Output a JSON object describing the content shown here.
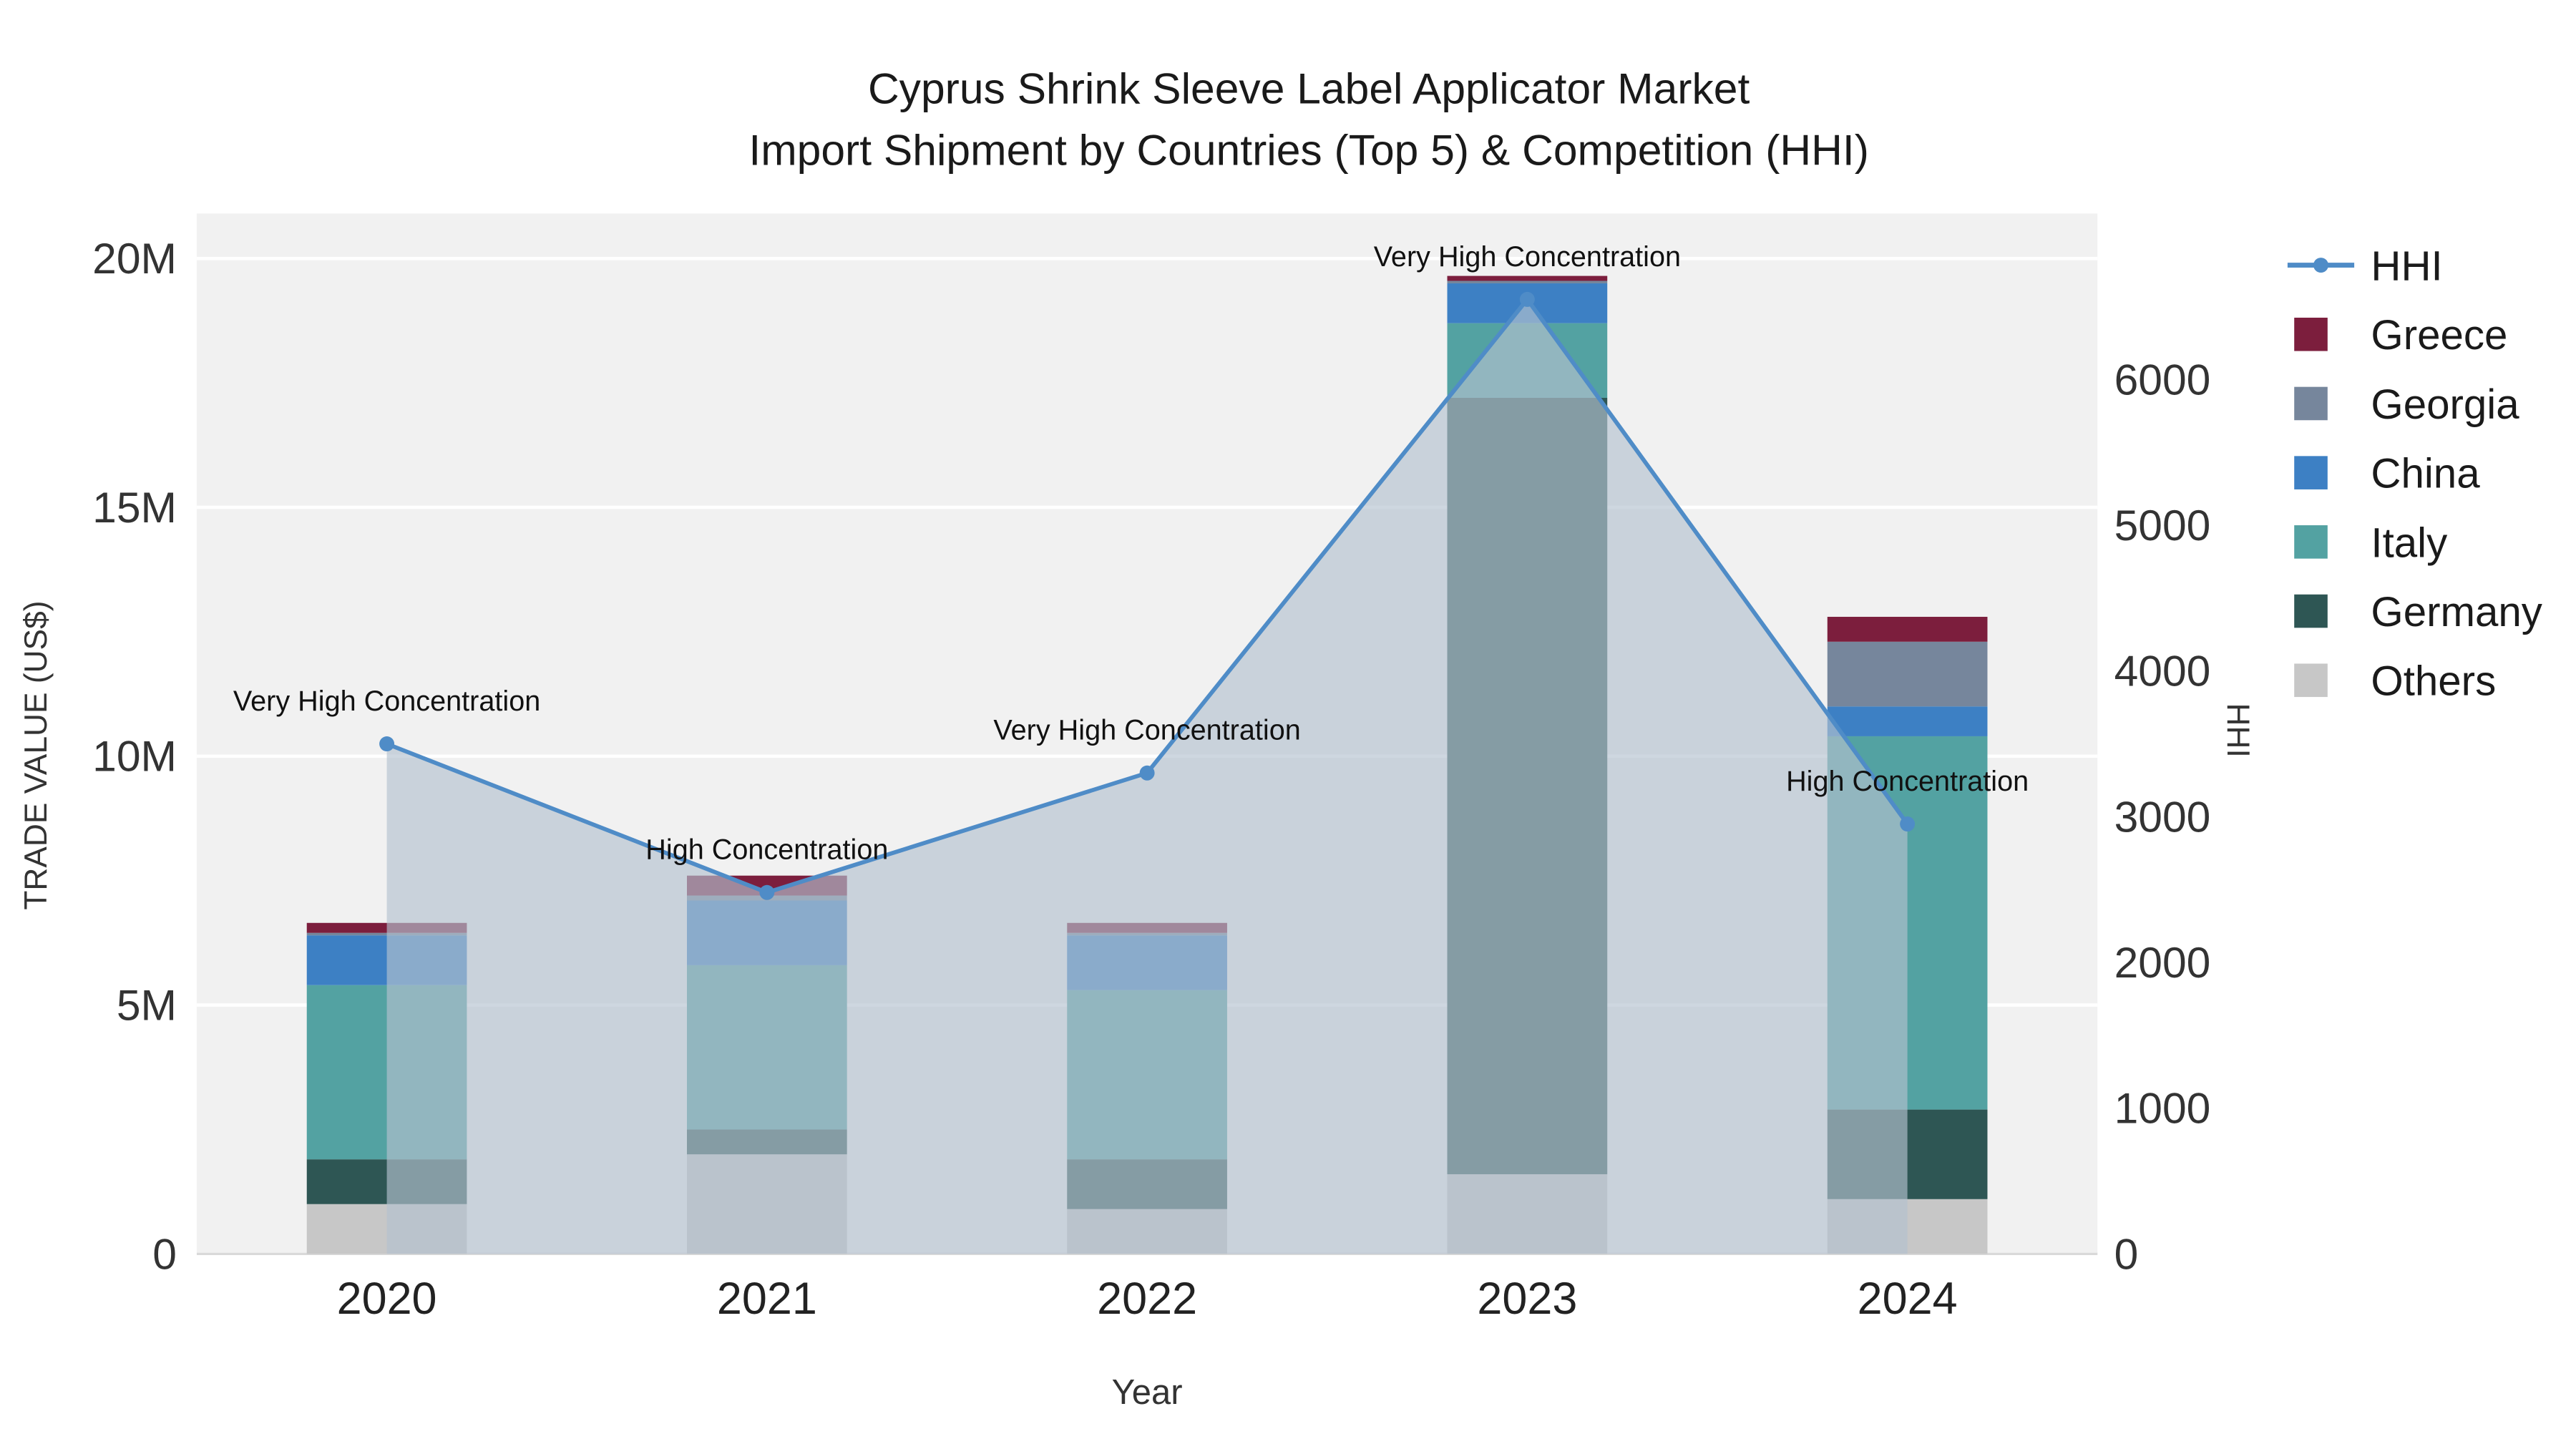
{
  "title": {
    "line1": "Cyprus Shrink Sleeve Label Applicator Market",
    "line2": "Import Shipment by Countries (Top 5) & Competition (HHI)"
  },
  "axes": {
    "y_left_label": "TRADE VALUE (US$)",
    "y_right_label": "HHI",
    "x_label": "Year",
    "y_left_ticks": [
      {
        "value": 0,
        "label": "0"
      },
      {
        "value": 5,
        "label": "5M"
      },
      {
        "value": 10,
        "label": "10M"
      },
      {
        "value": 15,
        "label": "15M"
      },
      {
        "value": 20,
        "label": "20M"
      }
    ],
    "y_right_ticks": [
      {
        "value": 0,
        "label": "0"
      },
      {
        "value": 1000,
        "label": "1000"
      },
      {
        "value": 2000,
        "label": "2000"
      },
      {
        "value": 3000,
        "label": "3000"
      },
      {
        "value": 4000,
        "label": "4000"
      },
      {
        "value": 5000,
        "label": "5000"
      },
      {
        "value": 6000,
        "label": "6000"
      }
    ]
  },
  "chart_data": {
    "type": "combo",
    "bar_mode": "stacked",
    "categories": [
      "2020",
      "2021",
      "2022",
      "2023",
      "2024"
    ],
    "value_unit": "millions USD",
    "y_left": {
      "min": 0,
      "max": 20
    },
    "y_right": {
      "min": 0,
      "max": 7140
    },
    "series": [
      {
        "name": "Others",
        "color": "#c7c7c7",
        "values": [
          1.0,
          2.0,
          0.9,
          1.6,
          1.1
        ]
      },
      {
        "name": "Germany",
        "color": "#2e5654",
        "values": [
          0.9,
          0.5,
          1.0,
          15.6,
          1.8
        ]
      },
      {
        "name": "Italy",
        "color": "#53a2a2",
        "values": [
          3.5,
          3.3,
          3.4,
          1.5,
          7.5
        ]
      },
      {
        "name": "China",
        "color": "#3d80c4",
        "values": [
          1.0,
          1.3,
          1.1,
          0.8,
          0.6
        ]
      },
      {
        "name": "Georgia",
        "color": "#76869c",
        "values": [
          0.05,
          0.1,
          0.05,
          0.05,
          1.3
        ]
      },
      {
        "name": "Greece",
        "color": "#7c1e3d",
        "values": [
          0.2,
          0.4,
          0.2,
          0.1,
          0.5
        ]
      }
    ],
    "line_series": {
      "name": "HHI",
      "axis": "right",
      "color": "#4f8cc7",
      "fill_color": "rgba(180,194,208,0.65)",
      "values": [
        3500,
        2480,
        3300,
        6550,
        2950
      ]
    },
    "annotations": [
      {
        "category_index": 0,
        "text": "Very High Concentration"
      },
      {
        "category_index": 1,
        "text": "High Concentration"
      },
      {
        "category_index": 2,
        "text": "Very High Concentration"
      },
      {
        "category_index": 3,
        "text": "Very High Concentration"
      },
      {
        "category_index": 4,
        "text": "High Concentration"
      }
    ],
    "grid": true,
    "legend_position": "right"
  },
  "legend": {
    "items": [
      {
        "label": "HHI",
        "type": "line",
        "color": "#4f8cc7"
      },
      {
        "label": "Greece",
        "type": "square",
        "color": "#7c1e3d"
      },
      {
        "label": "Georgia",
        "type": "square",
        "color": "#76869c"
      },
      {
        "label": "China",
        "type": "square",
        "color": "#3d80c4"
      },
      {
        "label": "Italy",
        "type": "square",
        "color": "#53a2a2"
      },
      {
        "label": "Germany",
        "type": "square",
        "color": "#2e5654"
      },
      {
        "label": "Others",
        "type": "square",
        "color": "#c7c7c7"
      }
    ]
  },
  "style": {
    "plot_bg": "#f1f1f1",
    "gridline_color": "#ffffff",
    "text_color": "#333333",
    "title_color": "#1a1a1a",
    "annotation_color": "#111111"
  }
}
